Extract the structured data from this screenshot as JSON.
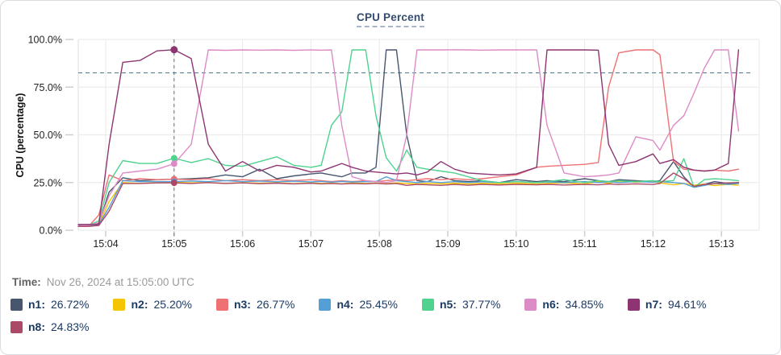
{
  "card": {
    "title": "CPU Percent"
  },
  "time_row": {
    "label": "Time:",
    "value": "Nov 26, 2024 at 15:05:00 UTC"
  },
  "legend": [
    {
      "id": "n1",
      "label": "n1:",
      "value": "26.72%",
      "color": "#47566e"
    },
    {
      "id": "n2",
      "label": "n2:",
      "value": "25.20%",
      "color": "#f5c402"
    },
    {
      "id": "n3",
      "label": "n3:",
      "value": "26.77%",
      "color": "#ee7173"
    },
    {
      "id": "n4",
      "label": "n4:",
      "value": "25.45%",
      "color": "#539fd6"
    },
    {
      "id": "n5",
      "label": "n5:",
      "value": "37.77%",
      "color": "#4ed28e"
    },
    {
      "id": "n6",
      "label": "n6:",
      "value": "34.85%",
      "color": "#dd8bc6"
    },
    {
      "id": "n7",
      "label": "n7:",
      "value": "94.61%",
      "color": "#8d3572"
    },
    {
      "id": "n8",
      "label": "n8:",
      "value": "24.83%",
      "color": "#ab4a67"
    }
  ],
  "chart_data": {
    "type": "line",
    "title": "CPU Percent",
    "xlabel": "",
    "ylabel": "CPU (percentage)",
    "ylim": [
      0,
      100
    ],
    "grid": true,
    "y_ticks": [
      {
        "label": "100.0%",
        "value": 100
      },
      {
        "label": "75.0%",
        "value": 75
      },
      {
        "label": "50.0%",
        "value": 50
      },
      {
        "label": "25.0%",
        "value": 25
      },
      {
        "label": "0.0%",
        "value": 0
      }
    ],
    "x_ticks": [
      {
        "label": "15:04",
        "minute": 4
      },
      {
        "label": "15:05",
        "minute": 5
      },
      {
        "label": "15:06",
        "minute": 6
      },
      {
        "label": "15:07",
        "minute": 7
      },
      {
        "label": "15:08",
        "minute": 8
      },
      {
        "label": "15:09",
        "minute": 9
      },
      {
        "label": "15:10",
        "minute": 10
      },
      {
        "label": "15:11",
        "minute": 11
      },
      {
        "label": "15:12",
        "minute": 12
      },
      {
        "label": "15:13",
        "minute": 13
      }
    ],
    "threshold_percent": 82.5,
    "crosshair": {
      "minute": 5,
      "time_label": "15:05:00"
    },
    "x_minutes": [
      3.6,
      3.75,
      3.9,
      4.05,
      4.25,
      4.5,
      4.75,
      5,
      5.25,
      5.5,
      5.75,
      6,
      6.25,
      6.5,
      6.75,
      7,
      7.15,
      7.3,
      7.45,
      7.6,
      7.8,
      7.95,
      8.1,
      8.25,
      8.4,
      8.55,
      8.7,
      8.9,
      9.1,
      9.3,
      9.5,
      9.75,
      10,
      10.3,
      10.45,
      10.7,
      11,
      11.2,
      11.35,
      11.5,
      11.75,
      12,
      12.1,
      12.3,
      12.45,
      12.6,
      12.75,
      12.9,
      13.1,
      13.25
    ],
    "series": [
      {
        "name": "n1",
        "color": "#47566e",
        "values": [
          3,
          3,
          3.5,
          20,
          27.5,
          26,
          26.5,
          26.72,
          27,
          27.5,
          29,
          28,
          32,
          27,
          28.5,
          29.5,
          30,
          29,
          28,
          30,
          30,
          33,
          94.5,
          94.5,
          50,
          26,
          25.5,
          28,
          26,
          25.5,
          26,
          25,
          26.5,
          25.5,
          26,
          25.5,
          27,
          26,
          25.5,
          26.5,
          26,
          25.5,
          26,
          36,
          28,
          22.5,
          24,
          25.5,
          24.5,
          25
        ]
      },
      {
        "name": "n2",
        "color": "#f5c402",
        "values": [
          2.5,
          2.5,
          3,
          15,
          25,
          24.5,
          25,
          25.2,
          24.8,
          25,
          24.5,
          25,
          24.6,
          24.9,
          24.4,
          24.8,
          24.5,
          24.7,
          24.3,
          24.8,
          24.5,
          24.7,
          24.4,
          24.8,
          24.5,
          24.2,
          24.6,
          24.3,
          24.7,
          24.2,
          24.6,
          24.3,
          24.7,
          24.2,
          24.5,
          24.8,
          24.3,
          25.5,
          24.6,
          25.8,
          25.2,
          25.6,
          24.8,
          23.8,
          24.5,
          23.6,
          24.2,
          23.4,
          24,
          23.6
        ]
      },
      {
        "name": "n3",
        "color": "#ee7173",
        "values": [
          2,
          2,
          8,
          29,
          26,
          27,
          26.5,
          26.77,
          26.5,
          27,
          26,
          26.5,
          26,
          26.5,
          26,
          26.5,
          26,
          25.5,
          26,
          25.5,
          26,
          25.5,
          26,
          26.5,
          26,
          26.5,
          27,
          26.5,
          27,
          26.5,
          27,
          28,
          29,
          33,
          33.5,
          34,
          34.5,
          35.5,
          75,
          93,
          94.5,
          94.5,
          92,
          36,
          32,
          31.5,
          31,
          31.5,
          31,
          32
        ]
      },
      {
        "name": "n4",
        "color": "#539fd6",
        "values": [
          2,
          2.5,
          3,
          12,
          26,
          25.5,
          25.5,
          25.45,
          25.8,
          25.5,
          26,
          25.5,
          25.8,
          25.4,
          25.7,
          25.3,
          25.6,
          25.2,
          25.6,
          25.3,
          25.5,
          25.5,
          28,
          26,
          25.5,
          25,
          25.5,
          25,
          25.5,
          25,
          25.4,
          25,
          25.5,
          25,
          25.3,
          25,
          25.5,
          25,
          25.4,
          25,
          25.5,
          25.2,
          25.5,
          25,
          24.5,
          22.5,
          23.5,
          24.5,
          24,
          24.5
        ]
      },
      {
        "name": "n5",
        "color": "#4ed28e",
        "values": [
          2.5,
          2.5,
          5,
          25,
          36.5,
          35,
          35,
          37.77,
          35.5,
          37.5,
          34,
          33.5,
          36,
          38.5,
          34,
          33,
          34,
          55,
          62,
          94.5,
          94.5,
          60,
          38,
          31,
          42,
          33,
          32,
          31,
          30,
          28,
          26,
          25,
          25.5,
          25,
          25.5,
          26.5,
          25,
          26,
          25.5,
          26,
          25.5,
          26,
          25.5,
          26,
          37.5,
          22.5,
          26.5,
          27,
          26.5,
          26
        ]
      },
      {
        "name": "n6",
        "color": "#dd8bc6",
        "values": [
          2.5,
          2.5,
          4,
          18,
          30,
          31,
          32,
          34.85,
          45,
          94.5,
          94.3,
          94.5,
          94.4,
          94.5,
          94.3,
          94.5,
          94.4,
          94.5,
          55,
          28,
          26,
          25.5,
          25,
          26,
          50,
          94.5,
          94.5,
          94.5,
          94.6,
          94.5,
          94.4,
          94.5,
          94.5,
          94.5,
          55,
          30,
          28,
          28.5,
          29,
          30,
          49,
          47,
          42,
          55,
          60,
          72,
          85,
          94.5,
          94.5,
          52
        ]
      },
      {
        "name": "n7",
        "color": "#8d3572",
        "values": [
          3,
          3,
          3,
          45,
          88,
          89,
          94,
          94.61,
          90,
          45,
          31,
          36,
          31,
          34,
          33,
          30.5,
          31,
          33,
          35,
          33,
          31,
          30.5,
          30,
          29.5,
          30,
          29,
          30.5,
          36,
          32,
          30,
          29.5,
          29,
          29.5,
          33,
          94.5,
          94.5,
          94.5,
          94.4,
          45,
          34,
          36,
          40,
          35,
          37,
          33,
          31.5,
          31,
          31.5,
          35,
          94.6
        ]
      },
      {
        "name": "n8",
        "color": "#ab4a67",
        "values": [
          2,
          2,
          2.5,
          10,
          24.5,
          24.5,
          24.8,
          24.83,
          24.5,
          25,
          24.5,
          24.8,
          24.4,
          24.7,
          24.3,
          24.6,
          24.3,
          24.5,
          24.2,
          24.5,
          24.3,
          24.6,
          24.2,
          24.5,
          23.5,
          24,
          23.8,
          23.5,
          24,
          23.6,
          24,
          23.7,
          24,
          23.8,
          24,
          23.7,
          24,
          23.8,
          24.2,
          24,
          24.3,
          24,
          24.5,
          30,
          27,
          23,
          24,
          24.5,
          24.8,
          25
        ]
      }
    ],
    "colors": {
      "grid": "#ececec",
      "axis_text": "#1f1f1f",
      "crosshair": "#4a7b8c"
    }
  }
}
